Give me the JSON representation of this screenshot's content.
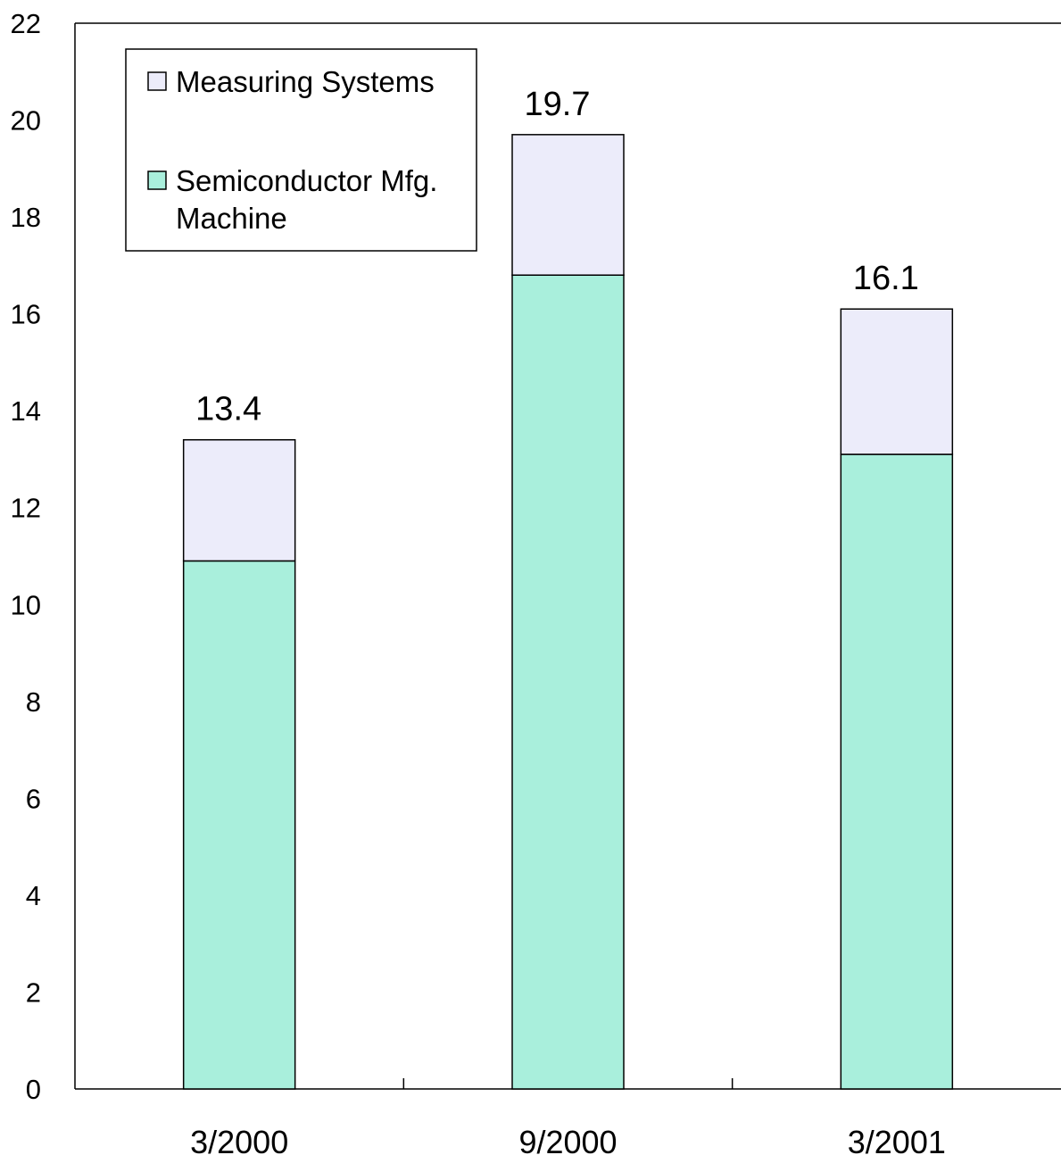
{
  "chart_data": {
    "type": "bar",
    "stacked": true,
    "categories": [
      "3/2000",
      "9/2000",
      "3/2001"
    ],
    "series": [
      {
        "name": "Semiconductor Mfg. Machine",
        "values": [
          10.9,
          16.8,
          13.1
        ],
        "color": "#a9efdc"
      },
      {
        "name": "Measuring Systems",
        "values": [
          2.5,
          2.9,
          3.0
        ],
        "color": "#ececfa"
      }
    ],
    "totals": [
      "13.4",
      "19.7",
      "16.1"
    ],
    "ylim": [
      0,
      22
    ],
    "yticks": [
      0,
      2,
      4,
      6,
      8,
      10,
      12,
      14,
      16,
      18,
      20,
      22
    ],
    "legend": {
      "placement": "top-left",
      "entries": [
        {
          "lines": [
            "Measuring Systems"
          ],
          "color": "#ececfa"
        },
        {
          "lines": [
            "Semiconductor Mfg.",
            "Machine"
          ],
          "color": "#a9efdc"
        }
      ]
    },
    "grid": false
  }
}
